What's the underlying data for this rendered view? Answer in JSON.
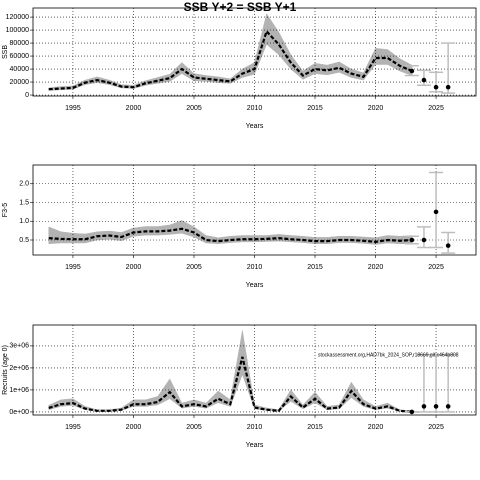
{
  "chart_data": [
    {
      "type": "line",
      "title": "SSB Y+2 = SSB Y+1",
      "xlabel": "Years",
      "ylabel": "SSB",
      "x": [
        1993,
        1994,
        1995,
        1996,
        1997,
        1998,
        1999,
        2000,
        2001,
        2002,
        2003,
        2004,
        2005,
        2006,
        2007,
        2008,
        2009,
        2010,
        2011,
        2012,
        2013,
        2014,
        2015,
        2016,
        2017,
        2018,
        2019,
        2020,
        2021,
        2022,
        2023
      ],
      "values": [
        9000,
        10000,
        11000,
        19000,
        23000,
        19000,
        13000,
        12000,
        18000,
        22000,
        26000,
        40000,
        27000,
        25000,
        23000,
        21000,
        33000,
        40000,
        98000,
        78000,
        50000,
        30000,
        40000,
        38000,
        42000,
        33000,
        28000,
        57000,
        57000,
        45000,
        37000
      ],
      "lower": [
        7000,
        8000,
        9000,
        16000,
        19000,
        16000,
        11000,
        10000,
        15000,
        18000,
        21000,
        33000,
        22000,
        21000,
        19000,
        18000,
        27000,
        32000,
        78000,
        62000,
        40000,
        24000,
        33000,
        31000,
        35000,
        27000,
        23000,
        47000,
        47000,
        37000,
        30000
      ],
      "upper": [
        11000,
        13000,
        14000,
        23000,
        28000,
        23000,
        16000,
        15000,
        22000,
        27000,
        32000,
        50000,
        33000,
        30000,
        28000,
        25000,
        40000,
        50000,
        125000,
        97000,
        62000,
        37000,
        49000,
        46000,
        51000,
        40000,
        34000,
        72000,
        70000,
        56000,
        46000
      ],
      "forecast": {
        "x": [
          2023,
          2024,
          2025,
          2026
        ],
        "values": [
          37000,
          23000,
          12000,
          12000
        ],
        "lower": [
          30000,
          15000,
          5000,
          3000
        ],
        "upper": [
          45000,
          38000,
          35000,
          80000
        ]
      },
      "xlim": [
        1991.7,
        2028.3
      ],
      "xticks": [
        1995,
        2000,
        2005,
        2010,
        2015,
        2020,
        2025
      ],
      "ylim": [
        -1500,
        134000
      ],
      "yticks": [
        0,
        20000,
        40000,
        60000,
        80000,
        100000,
        120000
      ],
      "grid": true,
      "line_color": "#000000",
      "band_color": "#b3b3b3",
      "bar_color": "#bebebe"
    },
    {
      "type": "line",
      "xlabel": "Years",
      "ylabel": "F3-5",
      "x": [
        1993,
        1994,
        1995,
        1996,
        1997,
        1998,
        1999,
        2000,
        2001,
        2002,
        2003,
        2004,
        2005,
        2006,
        2007,
        2008,
        2009,
        2010,
        2011,
        2012,
        2013,
        2014,
        2015,
        2016,
        2017,
        2018,
        2019,
        2020,
        2021,
        2022,
        2023
      ],
      "values": [
        0.55,
        0.53,
        0.52,
        0.52,
        0.6,
        0.62,
        0.58,
        0.7,
        0.73,
        0.73,
        0.75,
        0.8,
        0.7,
        0.5,
        0.47,
        0.5,
        0.52,
        0.52,
        0.53,
        0.55,
        0.52,
        0.5,
        0.47,
        0.47,
        0.5,
        0.5,
        0.48,
        0.45,
        0.5,
        0.48,
        0.5
      ],
      "lower": [
        0.4,
        0.42,
        0.42,
        0.42,
        0.5,
        0.52,
        0.48,
        0.6,
        0.63,
        0.63,
        0.65,
        0.68,
        0.58,
        0.42,
        0.4,
        0.43,
        0.45,
        0.45,
        0.46,
        0.47,
        0.45,
        0.43,
        0.4,
        0.4,
        0.43,
        0.43,
        0.41,
        0.38,
        0.42,
        0.4,
        0.4
      ],
      "upper": [
        0.85,
        0.72,
        0.68,
        0.66,
        0.72,
        0.74,
        0.7,
        0.82,
        0.86,
        0.86,
        0.9,
        1.02,
        0.85,
        0.62,
        0.56,
        0.6,
        0.62,
        0.62,
        0.62,
        0.65,
        0.62,
        0.6,
        0.57,
        0.57,
        0.6,
        0.6,
        0.58,
        0.56,
        0.62,
        0.6,
        0.62
      ],
      "forecast": {
        "x": [
          2023,
          2024,
          2025,
          2026
        ],
        "values": [
          0.5,
          0.5,
          1.25,
          0.35
        ],
        "lower": [
          0.4,
          0.3,
          0.3,
          0.15
        ],
        "upper": [
          0.6,
          0.85,
          2.3,
          0.7
        ]
      },
      "xlim": [
        1991.7,
        2028.3
      ],
      "xticks": [
        1995,
        2000,
        2005,
        2010,
        2015,
        2020,
        2025
      ],
      "ylim": [
        0.1,
        2.5
      ],
      "yticks": [
        0.5,
        {
          "value": 1,
          "label": "1.0"
        },
        1.5,
        {
          "value": 2,
          "label": "2.0"
        }
      ],
      "grid": true,
      "line_color": "#000000",
      "band_color": "#b3b3b3",
      "bar_color": "#bebebe"
    },
    {
      "type": "line",
      "xlabel": "Years",
      "ylabel": "Recruits (age 0)",
      "annotation": "stockassessment.org,HAD7bk_2024_SOP,r18669,git:c464b808",
      "x": [
        1993,
        1994,
        1995,
        1996,
        1997,
        1998,
        1999,
        2000,
        2001,
        2002,
        2003,
        2004,
        2005,
        2006,
        2007,
        2008,
        2009,
        2010,
        2011,
        2012,
        2013,
        2014,
        2015,
        2016,
        2017,
        2018,
        2019,
        2020,
        2021,
        2022,
        2023
      ],
      "values": [
        180000,
        350000,
        400000,
        150000,
        50000,
        50000,
        100000,
        350000,
        350000,
        450000,
        900000,
        250000,
        350000,
        250000,
        600000,
        350000,
        2500000,
        200000,
        100000,
        50000,
        700000,
        200000,
        600000,
        150000,
        200000,
        950000,
        350000,
        150000,
        250000,
        50000,
        0
      ],
      "lower": [
        100000,
        250000,
        300000,
        100000,
        30000,
        30000,
        70000,
        250000,
        250000,
        320000,
        600000,
        170000,
        250000,
        170000,
        420000,
        250000,
        1700000,
        140000,
        70000,
        30000,
        480000,
        140000,
        420000,
        100000,
        140000,
        650000,
        250000,
        100000,
        170000,
        30000,
        0
      ],
      "upper": [
        300000,
        550000,
        600000,
        250000,
        100000,
        100000,
        180000,
        550000,
        550000,
        700000,
        1500000,
        400000,
        550000,
        400000,
        950000,
        550000,
        3700000,
        320000,
        180000,
        100000,
        1000000,
        320000,
        900000,
        250000,
        320000,
        1350000,
        550000,
        250000,
        400000,
        100000,
        50000
      ],
      "forecast": {
        "x": [
          2023,
          2024,
          2025,
          2026
        ],
        "values": [
          0,
          250000,
          250000,
          250000
        ],
        "lower": [
          0,
          0,
          0,
          0
        ],
        "upper": [
          0,
          2600000,
          2600000,
          2600000
        ]
      },
      "xlim": [
        1991.7,
        2028.3
      ],
      "xticks": [
        1995,
        2000,
        2005,
        2010,
        2015,
        2020,
        2025
      ],
      "ylim": [
        -140000,
        3950000
      ],
      "yticks": [
        {
          "value": 0,
          "label": "0e+00"
        },
        {
          "value": 1000000,
          "label": "1e+06"
        },
        {
          "value": 2000000,
          "label": "2e+06"
        },
        {
          "value": 3000000,
          "label": "3e+06"
        }
      ],
      "grid": true,
      "line_color": "#000000",
      "band_color": "#b3b3b3",
      "bar_color": "#bebebe"
    }
  ]
}
